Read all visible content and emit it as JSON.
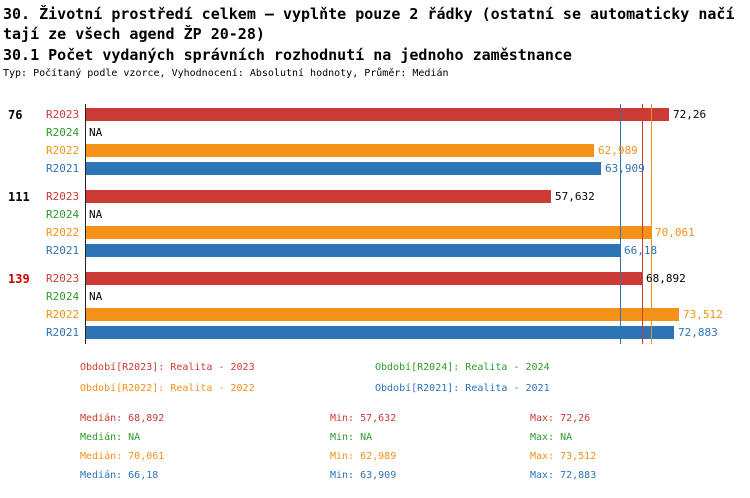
{
  "header": {
    "title_lines": [
      "30. Životní prostředí celkem – vyplňte pouze 2 řádky (ostatní se automaticky načí",
      "tají ze všech agend ŽP 20-28)",
      "30.1 Počet vydaných správních rozhodnutí na jednoho zaměstnance"
    ],
    "subtitle": "Typ: Počítaný podle vzorce, Vyhodnocení: Absolutní hodnoty, Průměr: Medián"
  },
  "colors": {
    "series": {
      "R2023": "#cc3b33",
      "R2024": "#2e9b2e",
      "R2022": "#f39119",
      "R2021": "#2d74b6"
    },
    "group_highlight": "#cc0000",
    "axis": "#222222"
  },
  "chart_data": {
    "type": "bar",
    "orientation": "horizontal",
    "title": "30.1 Počet vydaných správních rozhodnutí na jednoho zaměstnance",
    "xlim": [
      0,
      75
    ],
    "series_order": [
      "R2023",
      "R2024",
      "R2022",
      "R2021"
    ],
    "groups": [
      {
        "label": "76",
        "label_color": "#000000",
        "bars": [
          {
            "series": "R2023",
            "value": 72.26,
            "display": "72,26"
          },
          {
            "series": "R2024",
            "value": null,
            "display": "NA"
          },
          {
            "series": "R2022",
            "value": 62.989,
            "display": "62,989"
          },
          {
            "series": "R2021",
            "value": 63.909,
            "display": "63,909"
          }
        ]
      },
      {
        "label": "111",
        "label_color": "#000000",
        "bars": [
          {
            "series": "R2023",
            "value": 57.632,
            "display": "57,632"
          },
          {
            "series": "R2024",
            "value": null,
            "display": "NA"
          },
          {
            "series": "R2022",
            "value": 70.061,
            "display": "70,061"
          },
          {
            "series": "R2021",
            "value": 66.18,
            "display": "66,18"
          }
        ]
      },
      {
        "label": "139",
        "label_color": "#cc0000",
        "bars": [
          {
            "series": "R2023",
            "value": 68.892,
            "display": "68,892"
          },
          {
            "series": "R2024",
            "value": null,
            "display": "NA"
          },
          {
            "series": "R2022",
            "value": 73.512,
            "display": "73,512"
          },
          {
            "series": "R2021",
            "value": 72.883,
            "display": "72,883"
          }
        ]
      }
    ],
    "reference_lines": [
      {
        "series": "R2021",
        "value": 66.18
      },
      {
        "series": "R2023",
        "value": 68.892
      },
      {
        "series": "R2022",
        "value": 70.061
      }
    ]
  },
  "legend": [
    {
      "series": "R2023",
      "text": "Období[R2023]: Realita - 2023",
      "row": 0,
      "col": 0
    },
    {
      "series": "R2024",
      "text": "Období[R2024]: Realita - 2024",
      "row": 0,
      "col": 1
    },
    {
      "series": "R2022",
      "text": "Období[R2022]: Realita - 2022",
      "row": 1,
      "col": 0
    },
    {
      "series": "R2021",
      "text": "Období[R2021]: Realita - 2021",
      "row": 1,
      "col": 1
    }
  ],
  "stats": [
    {
      "series": "R2023",
      "median": "Medián: 68,892",
      "min": "Min: 57,632",
      "max": "Max: 72,26"
    },
    {
      "series": "R2024",
      "median": "Medián: NA",
      "min": "Min: NA",
      "max": "Max: NA"
    },
    {
      "series": "R2022",
      "median": "Medián: 70,061",
      "min": "Min: 62,989",
      "max": "Max: 73,512"
    },
    {
      "series": "R2021",
      "median": "Medián: 66,18",
      "min": "Min: 63,909",
      "max": "Max: 72,883"
    }
  ]
}
